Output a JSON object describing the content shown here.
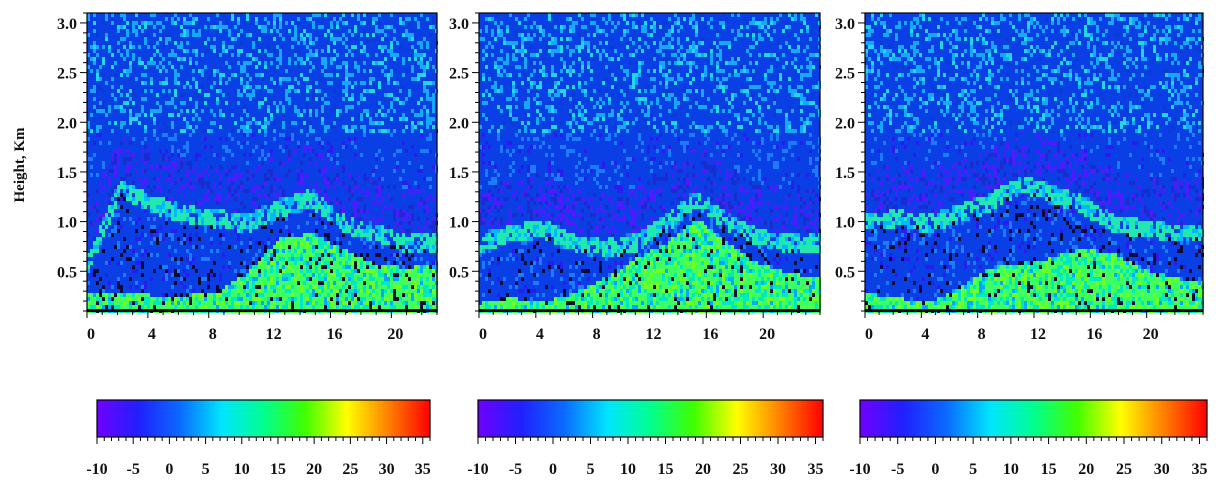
{
  "chart_data": [
    {
      "type": "heatmap",
      "ylabel": "Height, Km",
      "xlabel": "",
      "x_ticks": [
        0,
        4,
        8,
        12,
        16,
        20
      ],
      "y_ticks": [
        0.5,
        1.0,
        1.5,
        2.0,
        2.5,
        3.0
      ],
      "y_tick_labels": [
        "0.5",
        "1.0",
        "1.5",
        "2.0",
        "2.5",
        "3.0"
      ],
      "xlim": [
        0,
        23
      ],
      "ylim": [
        0.1,
        3.1
      ],
      "colorbar": {
        "range": [
          -10,
          36
        ],
        "tick_labels": [
          "-10",
          "-5",
          "0",
          "5",
          "10",
          "15",
          "20",
          "25",
          "30",
          "35"
        ],
        "tick_values": [
          -10,
          -5,
          0,
          5,
          10,
          15,
          20,
          25,
          30,
          35
        ]
      },
      "features": {
        "surface_layer_top_km": [
          0.3,
          0.3,
          0.28,
          0.28,
          0.3,
          0.5,
          0.85,
          0.9,
          0.75,
          0.6,
          0.55,
          0.6
        ],
        "elevated_layer_km": [
          0.6,
          1.35,
          1.2,
          1.1,
          1.05,
          1.0,
          1.15,
          1.25,
          1.0,
          0.9,
          0.8,
          0.8
        ]
      }
    },
    {
      "type": "heatmap",
      "ylabel": "",
      "xlabel": "",
      "x_ticks": [
        0,
        4,
        8,
        12,
        16,
        20
      ],
      "y_ticks": [
        0.5,
        1.0,
        1.5,
        2.0,
        2.5,
        3.0
      ],
      "y_tick_labels": [
        "0.5",
        "1.0",
        "1.5",
        "2.0",
        "2.5",
        "3.0"
      ],
      "xlim": [
        0,
        24
      ],
      "ylim": [
        0.1,
        3.1
      ],
      "colorbar": {
        "range": [
          -10,
          36
        ],
        "tick_labels": [
          "-10",
          "-5",
          "0",
          "5",
          "10",
          "15",
          "20",
          "25",
          "30",
          "35"
        ],
        "tick_values": [
          -10,
          -5,
          0,
          5,
          10,
          15,
          20,
          25,
          30,
          35
        ]
      },
      "features": {
        "surface_layer_top_km": [
          0.2,
          0.25,
          0.2,
          0.3,
          0.45,
          0.65,
          0.8,
          1.05,
          0.8,
          0.6,
          0.5,
          0.45
        ],
        "elevated_layer_km": [
          0.8,
          0.9,
          0.95,
          0.8,
          0.75,
          0.8,
          1.0,
          1.25,
          1.0,
          0.85,
          0.8,
          0.8
        ]
      }
    },
    {
      "type": "heatmap",
      "ylabel": "",
      "xlabel": "",
      "x_ticks": [
        0,
        4,
        8,
        12,
        16,
        20
      ],
      "y_ticks": [
        0.5,
        1.0,
        1.5,
        2.0,
        2.5,
        3.0
      ],
      "y_tick_labels": [
        "0.5",
        "1.0",
        "1.5",
        "2.0",
        "2.5",
        "3.0"
      ],
      "xlim": [
        0,
        24
      ],
      "ylim": [
        0.1,
        3.1
      ],
      "colorbar": {
        "range": [
          -10,
          36
        ],
        "tick_labels": [
          "-10",
          "-5",
          "0",
          "5",
          "10",
          "15",
          "20",
          "25",
          "30",
          "35"
        ],
        "tick_values": [
          -10,
          -5,
          0,
          5,
          10,
          15,
          20,
          25,
          30,
          35
        ]
      },
      "features": {
        "surface_layer_top_km": [
          0.3,
          0.25,
          0.2,
          0.35,
          0.55,
          0.6,
          0.65,
          0.75,
          0.7,
          0.55,
          0.45,
          0.4
        ],
        "elevated_layer_km": [
          1.0,
          1.05,
          1.0,
          1.1,
          1.2,
          1.4,
          1.3,
          1.2,
          1.0,
          0.95,
          0.9,
          0.9
        ]
      }
    }
  ],
  "colors": {
    "colormap": [
      "#7000ff",
      "#2020ff",
      "#0a6bff",
      "#00e5ff",
      "#00ff90",
      "#40ff00",
      "#ffff00",
      "#ff8000",
      "#ff0000"
    ],
    "background_field": "#0b3fe6",
    "frame": "#000000"
  }
}
